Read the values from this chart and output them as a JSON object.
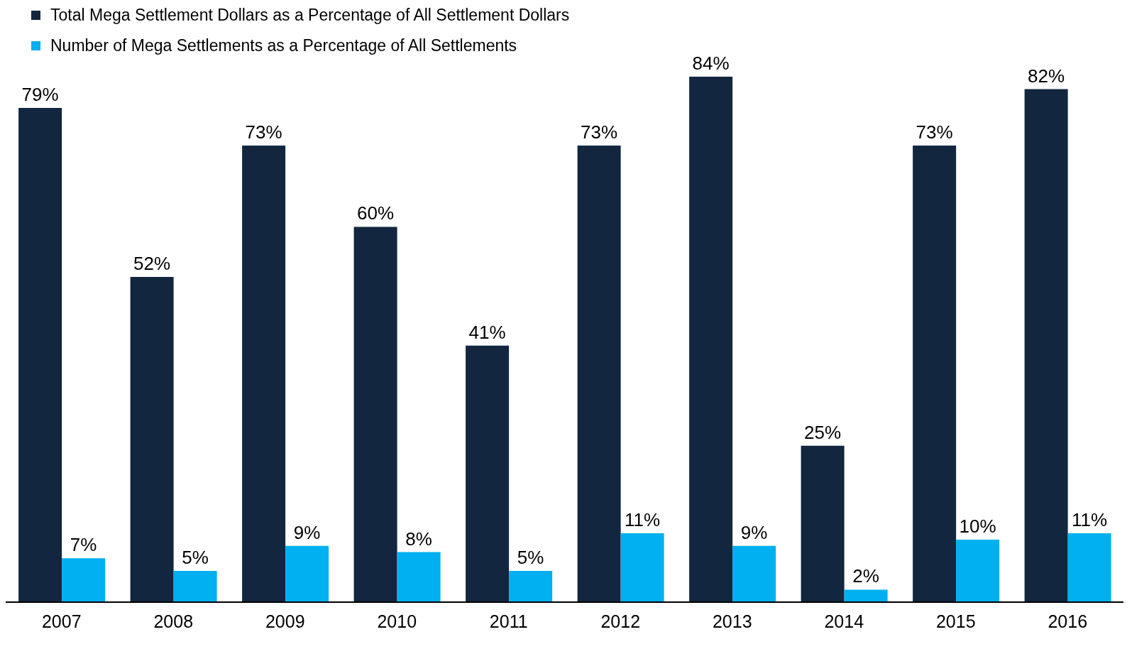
{
  "chart_data": {
    "type": "bar",
    "categories": [
      "2007",
      "2008",
      "2009",
      "2010",
      "2011",
      "2012",
      "2013",
      "2014",
      "2015",
      "2016"
    ],
    "series": [
      {
        "name": "Total Mega Settlement Dollars as a Percentage of All Settlement Dollars",
        "color": "#12263f",
        "values": [
          79,
          52,
          73,
          60,
          41,
          73,
          84,
          25,
          73,
          82
        ],
        "value_labels": [
          "79%",
          "52%",
          "73%",
          "60%",
          "41%",
          "73%",
          "84%",
          "25%",
          "73%",
          "82%"
        ]
      },
      {
        "name": "Number of Mega Settlements as a Percentage of All Settlements",
        "color": "#00b0f0",
        "values": [
          7,
          5,
          9,
          8,
          5,
          11,
          9,
          2,
          10,
          11
        ],
        "value_labels": [
          "7%",
          "5%",
          "9%",
          "8%",
          "5%",
          "11%",
          "9%",
          "2%",
          "10%",
          "11%"
        ]
      }
    ],
    "legend": "top left",
    "grid": false
  }
}
